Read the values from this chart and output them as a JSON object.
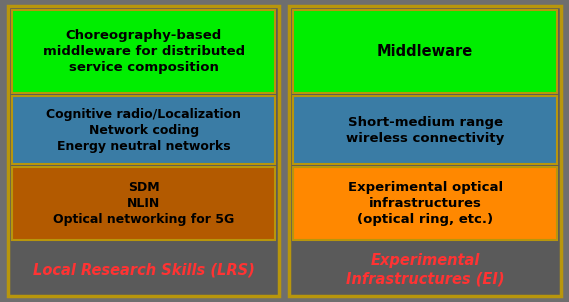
{
  "fig_width": 5.69,
  "fig_height": 3.02,
  "dpi": 100,
  "bg_color": "#6e6e6e",
  "panel_bg_color": "#5a5a5a",
  "border_color": "#b8960c",
  "left_panel": {
    "label": "Local Research Skills (LRS)",
    "label_color": "#ff3333",
    "label_fontsize": 10.5,
    "label_fontstyle": "italic",
    "label_fontweight": "bold",
    "blocks": [
      {
        "text": "Choreography-based\nmiddleware for distributed\nservice composition",
        "color": "#00ee00",
        "fontsize": 9.5
      },
      {
        "text": "Cognitive radio/Localization\nNetwork coding\nEnergy neutral networks",
        "color": "#3a7ca5",
        "fontsize": 9.0
      },
      {
        "text": "SDM\nNLIN\nOptical networking for 5G",
        "color": "#b35a00",
        "fontsize": 9.0
      }
    ]
  },
  "right_panel": {
    "label": "Experimental\nInfrastructures (EI)",
    "label_color": "#ff3333",
    "label_fontsize": 10.5,
    "label_fontstyle": "italic",
    "label_fontweight": "bold",
    "blocks": [
      {
        "text": "Middleware",
        "color": "#00ee00",
        "fontsize": 10.5
      },
      {
        "text": "Short-medium range\nwireless connectivity",
        "color": "#3a7ca5",
        "fontsize": 9.5
      },
      {
        "text": "Experimental optical\ninfrastructures\n(optical ring, etc.)",
        "color": "#ff8800",
        "fontsize": 9.5
      }
    ]
  }
}
